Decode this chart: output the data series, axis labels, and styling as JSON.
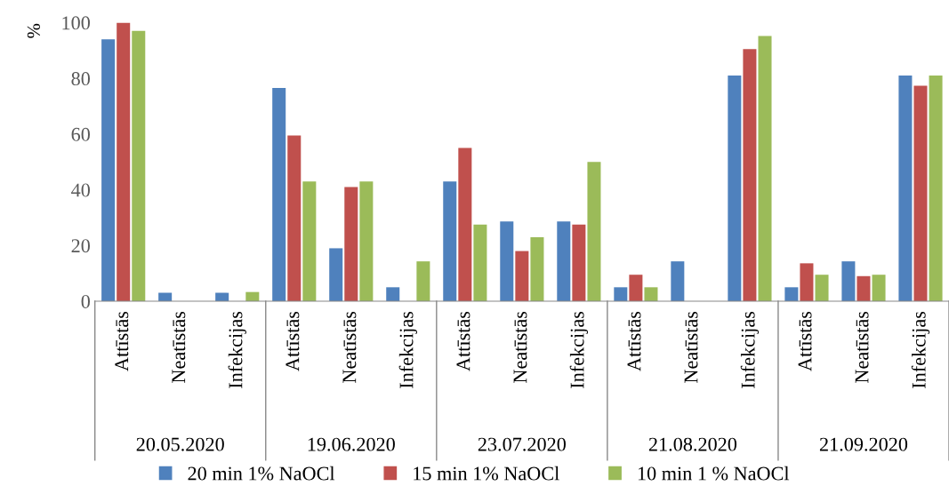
{
  "chart_data": {
    "type": "bar",
    "ylabel": "%",
    "categories": [
      "Attīstās",
      "Neatīstās",
      "Infekcijas",
      "Attīstās",
      "Neatīstās",
      "Infekcijas",
      "Attīstās",
      "Neatīstās",
      "Infekcijas",
      "Attīstās",
      "Neatīstās",
      "Infekcijas",
      "Attīstās",
      "Neatīstās",
      "Infekcijas"
    ],
    "annotations": [
      "20.05.2020",
      "19.06.2020",
      "23.07.2020",
      "21.08.2020",
      "21.09.2020"
    ],
    "series": [
      {
        "name": "20 min 1% NaOCl",
        "color": "#4f81bd",
        "values": [
          94,
          3,
          3,
          76.5,
          19,
          5,
          43,
          28.6,
          28.6,
          5,
          14.3,
          81,
          5,
          14.3,
          81
        ]
      },
      {
        "name": "15 min 1% NaOCl",
        "color": "#c0504d",
        "values": [
          100,
          0,
          0,
          59.5,
          41,
          0,
          55,
          18,
          27.5,
          9.5,
          0,
          90.5,
          13.6,
          9,
          77.3
        ]
      },
      {
        "name": "10 min 1 % NaOCl",
        "color": "#9bbb59",
        "values": [
          97,
          0,
          3.3,
          43,
          43,
          14.3,
          27.5,
          23,
          50,
          5,
          0,
          95.2,
          9.5,
          9.5,
          81
        ]
      }
    ],
    "ylim": [
      0,
      100
    ],
    "yticks": [
      0,
      20,
      40,
      60,
      80,
      100
    ],
    "grid": false,
    "legend": "bottom"
  }
}
